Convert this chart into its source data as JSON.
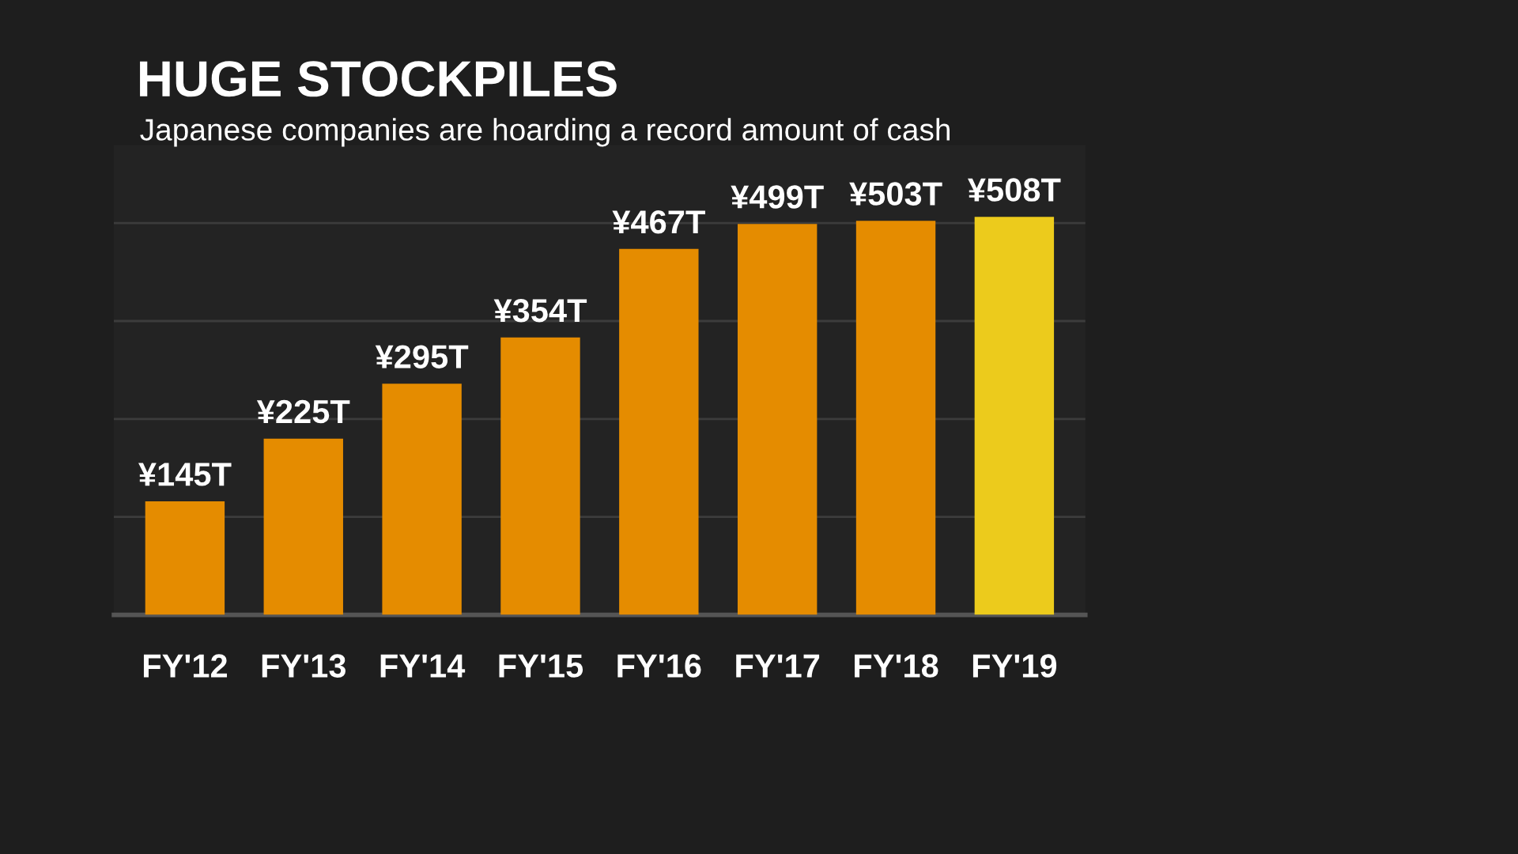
{
  "chart_data": {
    "type": "bar",
    "title": "HUGE STOCKPILES",
    "subtitle": "Japanese companies are hoarding a record amount of cash",
    "categories": [
      "FY'12",
      "FY'13",
      "FY'14",
      "FY'15",
      "FY'16",
      "FY'17",
      "FY'18",
      "FY'19"
    ],
    "values": [
      145,
      225,
      295,
      354,
      467,
      499,
      503,
      508
    ],
    "value_labels": [
      "¥145T",
      "¥225T",
      "¥295T",
      "¥354T",
      "¥467T",
      "¥499T",
      "¥503T",
      "¥508T"
    ],
    "colors": [
      "#e58c00",
      "#e58c00",
      "#e58c00",
      "#e58c00",
      "#e58c00",
      "#e58c00",
      "#e58c00",
      "#eccb1c"
    ],
    "yticks": [
      {
        "value": 125,
        "label": null
      },
      {
        "value": 250,
        "label": null
      },
      {
        "value": 375,
        "label": null
      },
      {
        "value": 500,
        "label": null
      }
    ],
    "grid": "y",
    "tick_labels": "x"
  }
}
